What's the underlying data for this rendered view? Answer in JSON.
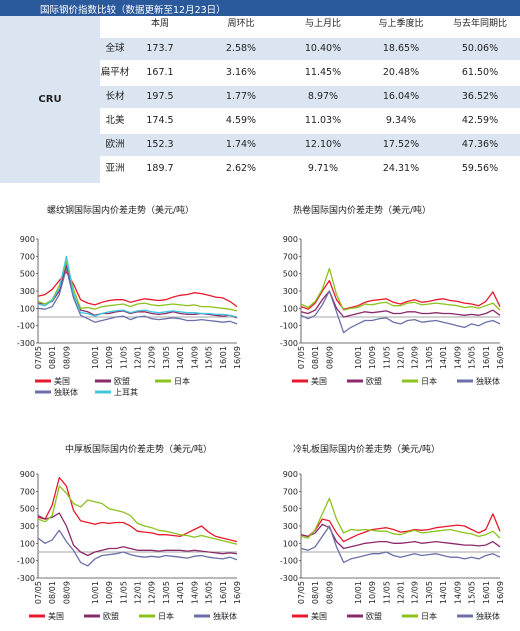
{
  "table": {
    "title": "国际钢价指数比较（数据更新至12月23日）",
    "index_name": "CRU",
    "headers": [
      "本周",
      "周环比",
      "与上月比",
      "与上季度比",
      "与去年同期比"
    ],
    "rows": [
      {
        "region": "全球",
        "values": [
          "173.7",
          "2.58%",
          "10.40%",
          "18.65%",
          "50.06%"
        ]
      },
      {
        "region": "扁平材",
        "values": [
          "167.1",
          "3.16%",
          "11.45%",
          "20.48%",
          "61.50%"
        ]
      },
      {
        "region": "长材",
        "values": [
          "197.5",
          "1.77%",
          "8.97%",
          "16.04%",
          "36.52%"
        ]
      },
      {
        "region": "北美",
        "values": [
          "174.5",
          "4.59%",
          "11.03%",
          "9.34%",
          "42.59%"
        ]
      },
      {
        "region": "欧洲",
        "values": [
          "152.3",
          "1.74%",
          "12.10%",
          "17.52%",
          "47.36%"
        ]
      },
      {
        "region": "亚洲",
        "values": [
          "189.7",
          "2.62%",
          "9.71%",
          "24.31%",
          "59.56%"
        ]
      }
    ]
  },
  "colors": {
    "美国": "#e8192c",
    "欧盟": "#8b2a6b",
    "日本": "#8cc21c",
    "独联体": "#6a6fa8",
    "上耳其": "#3ec8e0"
  },
  "chart_data": [
    {
      "type": "line",
      "title": "螺纹钢国际国内价差走势（美元/吨）",
      "x_ticks": [
        "07/05",
        "07/09",
        "08/01",
        "08/05",
        "08/09",
        "09/01",
        "09/05",
        "09/09",
        "10/01",
        "10/05",
        "10/09",
        "11/01",
        "11/05",
        "11/09",
        "12/01",
        "12/05",
        "12/09",
        "13/01",
        "13/05",
        "13/09",
        "14/01",
        "14/05",
        "14/09",
        "15/01",
        "15/05",
        "15/09",
        "16/01",
        "16/05",
        "16/09"
      ],
      "x_tick_labels": [
        "07/05",
        "08/01",
        "08/09",
        "10/01",
        "10/09",
        "11/05",
        "12/01",
        "12/09",
        "13/05",
        "14/01",
        "14/09",
        "15/05",
        "16/01",
        "16/09"
      ],
      "ylim": [
        -300,
        900
      ],
      "y_ticks": [
        -300,
        -100,
        100,
        300,
        500,
        700,
        900
      ],
      "series": [
        {
          "name": "美国",
          "values": [
            240,
            260,
            320,
            420,
            520,
            380,
            200,
            160,
            140,
            170,
            190,
            200,
            200,
            170,
            190,
            210,
            200,
            190,
            200,
            230,
            250,
            260,
            280,
            270,
            250,
            230,
            220,
            180,
            120
          ]
        },
        {
          "name": "欧盟",
          "values": [
            160,
            150,
            180,
            300,
            600,
            260,
            80,
            60,
            20,
            40,
            40,
            60,
            70,
            40,
            60,
            60,
            40,
            30,
            40,
            60,
            40,
            30,
            30,
            40,
            30,
            20,
            10,
            20,
            -10
          ]
        },
        {
          "name": "日本",
          "values": [
            180,
            150,
            200,
            360,
            640,
            320,
            100,
            110,
            90,
            120,
            130,
            140,
            150,
            120,
            150,
            160,
            140,
            130,
            140,
            150,
            140,
            130,
            140,
            120,
            120,
            110,
            100,
            90,
            70
          ]
        },
        {
          "name": "独联体",
          "values": [
            100,
            90,
            120,
            260,
            560,
            220,
            20,
            -20,
            -60,
            -40,
            -20,
            0,
            10,
            -30,
            0,
            10,
            -20,
            -30,
            -20,
            -10,
            -20,
            -40,
            -40,
            -30,
            -40,
            -50,
            -60,
            -50,
            -80
          ]
        },
        {
          "name": "上耳其",
          "values": [
            150,
            130,
            190,
            330,
            700,
            270,
            50,
            40,
            10,
            40,
            60,
            70,
            80,
            50,
            70,
            80,
            60,
            50,
            60,
            70,
            60,
            50,
            50,
            40,
            40,
            30,
            30,
            20,
            0
          ]
        }
      ],
      "legend": "bottom"
    },
    {
      "type": "line",
      "title": "热卷国际国内价差走势（美元/吨）",
      "x_ticks": [
        "07/05",
        "07/09",
        "08/01",
        "08/05",
        "08/09",
        "09/01",
        "09/05",
        "09/09",
        "10/01",
        "10/05",
        "10/09",
        "11/01",
        "11/05",
        "11/09",
        "12/01",
        "12/05",
        "12/09",
        "13/01",
        "13/05",
        "13/09",
        "14/01",
        "14/05",
        "14/09",
        "15/01",
        "15/05",
        "15/09",
        "16/01",
        "16/05",
        "16/09"
      ],
      "x_tick_labels": [
        "07/05",
        "08/01",
        "08/09",
        "10/01",
        "10/09",
        "11/05",
        "12/01",
        "12/09",
        "13/05",
        "14/01",
        "14/09",
        "15/05",
        "16/01",
        "16/09"
      ],
      "ylim": [
        -300,
        900
      ],
      "y_ticks": [
        -300,
        -100,
        100,
        300,
        500,
        700,
        900
      ],
      "series": [
        {
          "name": "美国",
          "values": [
            120,
            90,
            160,
            300,
            420,
            200,
            90,
            110,
            130,
            170,
            190,
            200,
            210,
            170,
            150,
            180,
            200,
            170,
            180,
            200,
            210,
            190,
            180,
            160,
            150,
            130,
            180,
            290,
            120
          ]
        },
        {
          "name": "欧盟",
          "values": [
            60,
            40,
            80,
            200,
            300,
            100,
            0,
            20,
            40,
            60,
            50,
            60,
            70,
            40,
            40,
            60,
            60,
            40,
            40,
            50,
            40,
            40,
            30,
            20,
            30,
            20,
            40,
            80,
            20
          ]
        },
        {
          "name": "日本",
          "values": [
            150,
            110,
            180,
            320,
            560,
            260,
            80,
            100,
            110,
            150,
            140,
            160,
            170,
            130,
            130,
            160,
            170,
            140,
            150,
            160,
            150,
            140,
            130,
            110,
            120,
            100,
            130,
            160,
            80
          ]
        },
        {
          "name": "独联体",
          "values": [
            20,
            -20,
            20,
            140,
            300,
            60,
            -180,
            -120,
            -80,
            -40,
            -40,
            -20,
            -10,
            -60,
            -80,
            -40,
            -30,
            -60,
            -50,
            -40,
            -60,
            -80,
            -100,
            -120,
            -80,
            -100,
            -60,
            -40,
            -80
          ]
        }
      ],
      "legend": "bottom"
    },
    {
      "type": "line",
      "title": "中厚板国际国内价差走势（美元/吨）",
      "x_ticks": [
        "07/05",
        "07/09",
        "08/01",
        "08/05",
        "08/09",
        "09/01",
        "09/05",
        "09/09",
        "10/01",
        "10/05",
        "10/09",
        "11/01",
        "11/05",
        "11/09",
        "12/01",
        "12/05",
        "12/09",
        "13/01",
        "13/05",
        "13/09",
        "14/01",
        "14/05",
        "14/09",
        "15/01",
        "15/05",
        "15/09",
        "16/01",
        "16/05",
        "16/09"
      ],
      "x_tick_labels": [
        "07/05",
        "08/01",
        "08/09",
        "10/01",
        "10/09",
        "11/05",
        "12/01",
        "12/09",
        "13/05",
        "14/01",
        "14/09",
        "15/05",
        "16/01",
        "16/09"
      ],
      "ylim": [
        -300,
        900
      ],
      "y_ticks": [
        -300,
        -100,
        100,
        300,
        500,
        700,
        900
      ],
      "series": [
        {
          "name": "美国",
          "values": [
            400,
            380,
            540,
            860,
            760,
            480,
            360,
            340,
            320,
            340,
            330,
            340,
            340,
            300,
            240,
            230,
            220,
            200,
            200,
            190,
            180,
            220,
            260,
            300,
            230,
            180,
            160,
            140,
            120
          ]
        },
        {
          "name": "欧盟",
          "values": [
            420,
            380,
            400,
            450,
            300,
            80,
            0,
            -40,
            0,
            20,
            40,
            40,
            60,
            40,
            20,
            20,
            20,
            10,
            20,
            20,
            20,
            10,
            20,
            10,
            0,
            -10,
            -20,
            -10,
            -20
          ]
        },
        {
          "name": "日本",
          "values": [
            380,
            350,
            420,
            760,
            680,
            560,
            520,
            600,
            580,
            560,
            500,
            480,
            460,
            420,
            330,
            300,
            280,
            250,
            240,
            220,
            200,
            190,
            170,
            190,
            170,
            150,
            130,
            110,
            90
          ]
        },
        {
          "name": "独联体",
          "values": [
            160,
            100,
            140,
            250,
            120,
            20,
            -120,
            -160,
            -80,
            -40,
            -30,
            -20,
            0,
            -30,
            -50,
            -60,
            -50,
            -60,
            -40,
            -50,
            -60,
            -70,
            -50,
            -40,
            -60,
            -70,
            -80,
            -60,
            -90
          ]
        }
      ],
      "legend": "bottom"
    },
    {
      "type": "line",
      "title": "冷轧板国际国内价差走势（美元/吨）",
      "x_ticks": [
        "07/05",
        "07/09",
        "08/01",
        "08/05",
        "08/09",
        "09/01",
        "09/05",
        "09/09",
        "10/01",
        "10/05",
        "10/09",
        "11/01",
        "11/05",
        "11/09",
        "12/01",
        "12/05",
        "12/09",
        "13/01",
        "13/05",
        "13/09",
        "14/01",
        "14/05",
        "14/09",
        "15/01",
        "15/05",
        "15/09",
        "16/01",
        "16/05",
        "16/09"
      ],
      "x_tick_labels": [
        "07/05",
        "08/01",
        "08/09",
        "10/01",
        "10/09",
        "11/05",
        "12/01",
        "12/09",
        "13/05",
        "14/01",
        "14/09",
        "15/05",
        "16/01",
        "16/09"
      ],
      "ylim": [
        -300,
        900
      ],
      "y_ticks": [
        -300,
        -100,
        100,
        300,
        500,
        700,
        900
      ],
      "series": [
        {
          "name": "美国",
          "values": [
            200,
            180,
            250,
            380,
            360,
            220,
            120,
            160,
            200,
            230,
            260,
            270,
            280,
            260,
            230,
            240,
            260,
            250,
            260,
            280,
            290,
            300,
            310,
            300,
            260,
            220,
            260,
            440,
            240
          ]
        },
        {
          "name": "欧盟",
          "values": [
            200,
            180,
            220,
            320,
            280,
            120,
            40,
            60,
            80,
            100,
            110,
            120,
            120,
            100,
            100,
            110,
            120,
            100,
            110,
            120,
            110,
            100,
            90,
            80,
            80,
            70,
            80,
            120,
            60
          ]
        },
        {
          "name": "日本",
          "values": [
            180,
            160,
            260,
            440,
            620,
            380,
            220,
            260,
            250,
            260,
            250,
            240,
            240,
            210,
            200,
            230,
            250,
            220,
            230,
            240,
            250,
            260,
            240,
            220,
            210,
            180,
            200,
            240,
            160
          ]
        },
        {
          "name": "独联体",
          "values": [
            40,
            20,
            60,
            180,
            300,
            60,
            -120,
            -80,
            -60,
            -40,
            -20,
            -20,
            0,
            -40,
            -60,
            -40,
            -20,
            -40,
            -30,
            -20,
            -40,
            -60,
            -60,
            -80,
            -60,
            -80,
            -40,
            -20,
            -60
          ]
        }
      ],
      "legend": "bottom"
    }
  ]
}
